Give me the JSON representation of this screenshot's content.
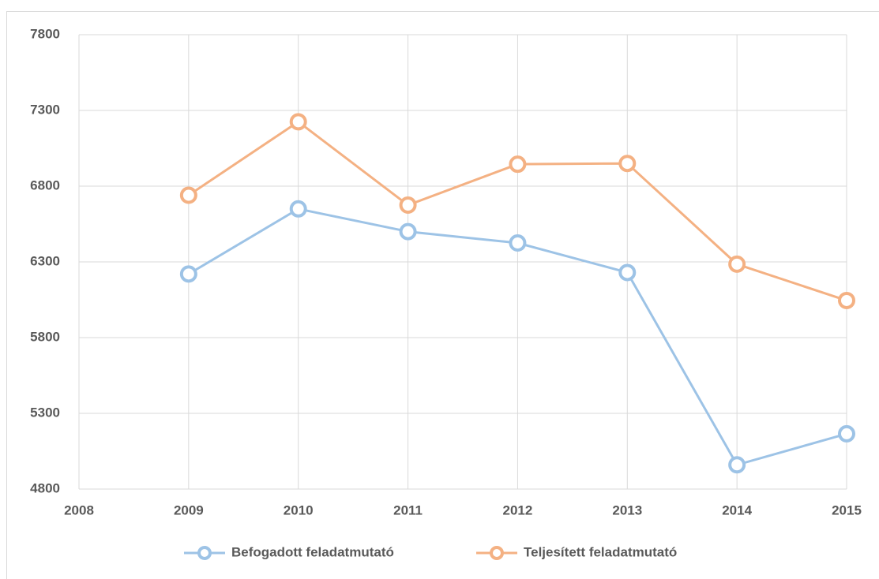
{
  "chart_data": {
    "type": "line",
    "x": [
      2009,
      2010,
      2011,
      2012,
      2013,
      2014,
      2015
    ],
    "series": [
      {
        "name": "Befogadott feladatmutató",
        "color": "#9dc3e6",
        "values": [
          6220,
          6650,
          6500,
          6425,
          6230,
          4960,
          5165
        ]
      },
      {
        "name": "Teljesített feladatmutató",
        "color": "#f4b183",
        "values": [
          6740,
          7225,
          6675,
          6945,
          6950,
          6285,
          6045
        ]
      }
    ],
    "xlim": [
      2008,
      2015
    ],
    "xticks": [
      2008,
      2009,
      2010,
      2011,
      2012,
      2013,
      2014,
      2015
    ],
    "ylim": [
      4800,
      7800
    ],
    "yticks": [
      4800,
      5300,
      5800,
      6300,
      6800,
      7300,
      7800
    ],
    "grid": true,
    "legend": "bottom"
  }
}
